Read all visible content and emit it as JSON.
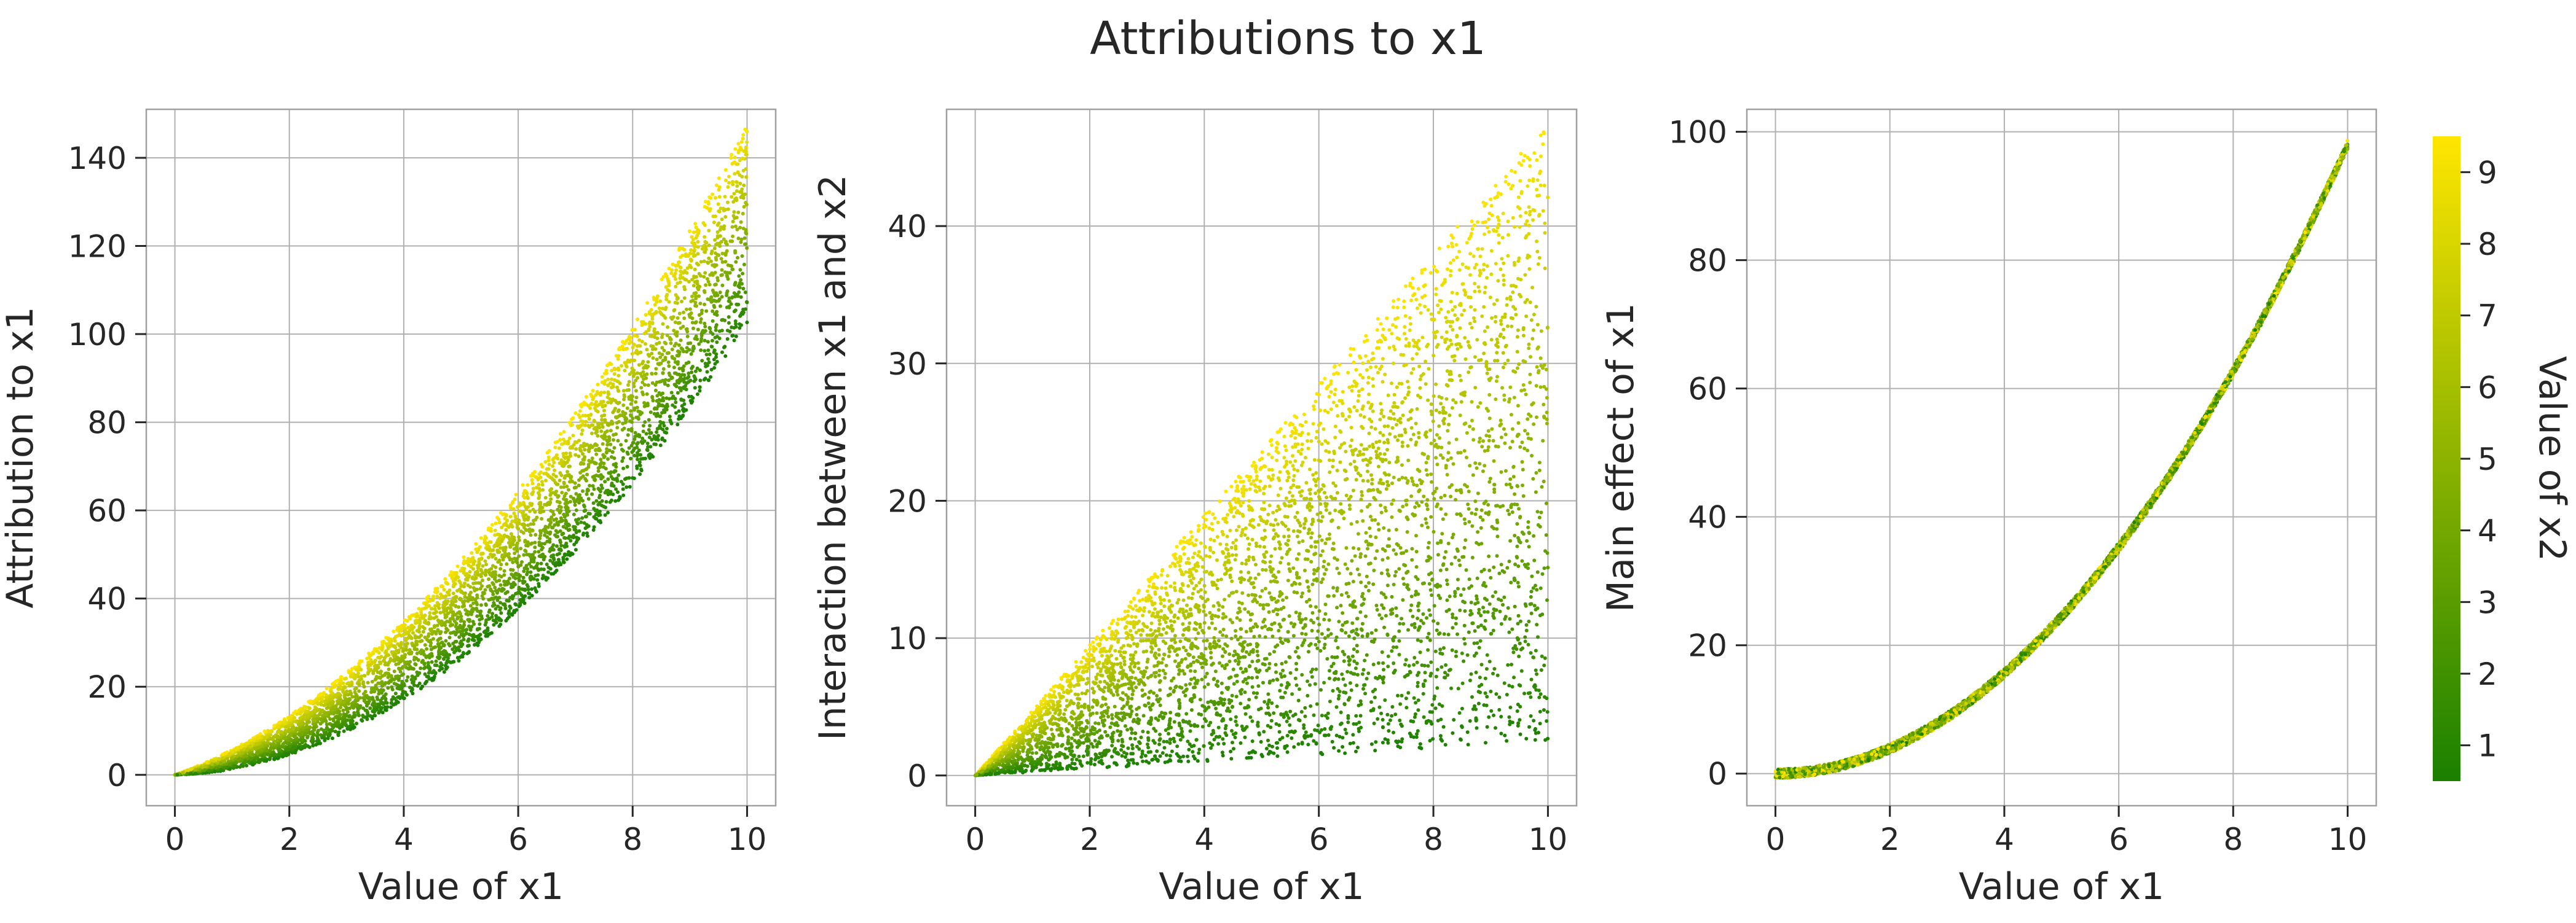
{
  "title": "Attributions to x1",
  "colors": {
    "low": "#1a8000",
    "high": "#ffe600",
    "grid": "#b0b0b0",
    "spine": "#a0a0a0",
    "text": "#262626"
  },
  "chart_data": [
    {
      "type": "scatter",
      "name": "attribution",
      "xlabel": "Value of x1",
      "ylabel": "Attribution to x1",
      "xlim": [
        -0.5,
        10.5
      ],
      "ylim": [
        -7,
        151
      ],
      "xticks": [
        0,
        2,
        4,
        6,
        8,
        10
      ],
      "yticks": [
        0,
        20,
        40,
        60,
        80,
        100,
        120,
        140
      ],
      "grid": true,
      "color_by": "Value of x2",
      "relation": "y = x1^2 + x1*x2/2 for x1, x2 uniform on [0.5, 9.5]",
      "points_count": 12000,
      "points_shown": 5000
    },
    {
      "type": "scatter",
      "name": "interaction",
      "xlabel": "Value of x1",
      "ylabel": "Interaction between x1 and x2",
      "xlim": [
        -0.5,
        10.5
      ],
      "ylim": [
        -2.2,
        48.5
      ],
      "xticks": [
        0,
        2,
        4,
        6,
        8,
        10
      ],
      "yticks": [
        0,
        10,
        20,
        30,
        40
      ],
      "grid": true,
      "color_by": "Value of x2",
      "relation": "y = x1*x2/2 for x1, x2 uniform on [0.5, 9.5]",
      "points_count": 12000,
      "points_shown": 5000
    },
    {
      "type": "scatter",
      "name": "main-effect",
      "xlabel": "Value of x1",
      "ylabel": "Main effect of x1",
      "xlim": [
        -0.5,
        10.5
      ],
      "ylim": [
        -5,
        103.5
      ],
      "xticks": [
        0,
        2,
        4,
        6,
        8,
        10
      ],
      "yticks": [
        0,
        20,
        40,
        60,
        80,
        100
      ],
      "grid": true,
      "color_by": "Value of x2",
      "relation": "y = x1^2 (small jitter)",
      "points_count": 12000,
      "points_shown": 5000
    }
  ],
  "colorbar": {
    "label": "Value of x2",
    "range": [
      0.5,
      9.5
    ],
    "ticks": [
      1,
      2,
      3,
      4,
      5,
      6,
      7,
      8,
      9
    ]
  }
}
